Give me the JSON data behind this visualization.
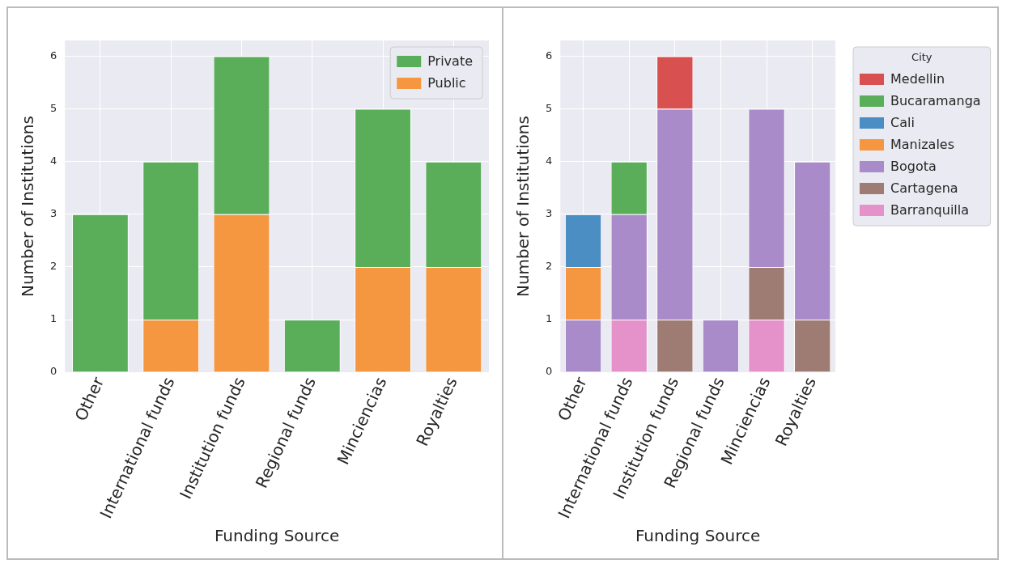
{
  "chart_data": [
    {
      "type": "bar",
      "xlabel": "Funding Source",
      "ylabel": "Number of Institutions",
      "categories": [
        "Other",
        "International funds",
        "Institution funds",
        "Regional funds",
        "Minciencias",
        "Royalties"
      ],
      "stacked": true,
      "ylim": [
        0,
        6.3
      ],
      "yticks": [
        0,
        1,
        2,
        3,
        4,
        5,
        6
      ],
      "grid": true,
      "legend": "top right",
      "series": [
        {
          "name": "Public",
          "color": "#f59640",
          "values": [
            0,
            1,
            3,
            0,
            2,
            2
          ]
        },
        {
          "name": "Private",
          "color": "#5aae5a",
          "values": [
            3,
            3,
            3,
            1,
            3,
            2
          ]
        }
      ]
    },
    {
      "type": "bar",
      "xlabel": "Funding Source",
      "ylabel": "Number of Institutions",
      "legend_title": "City",
      "categories": [
        "Other",
        "International funds",
        "Institution funds",
        "Regional funds",
        "Minciencias",
        "Royalties"
      ],
      "stacked": true,
      "ylim": [
        0,
        6.3
      ],
      "yticks": [
        0,
        1,
        2,
        3,
        4,
        5,
        6
      ],
      "grid": true,
      "legend": "right",
      "series": [
        {
          "name": "Barranquilla",
          "color": "#e592cb",
          "values": [
            0,
            1,
            0,
            0,
            1,
            0
          ]
        },
        {
          "name": "Cartagena",
          "color": "#9e7b73",
          "values": [
            0,
            0,
            1,
            0,
            1,
            1
          ]
        },
        {
          "name": "Bogota",
          "color": "#a98bc9",
          "values": [
            1,
            2,
            4,
            1,
            3,
            3
          ]
        },
        {
          "name": "Manizales",
          "color": "#f59640",
          "values": [
            1,
            0,
            0,
            0,
            0,
            0
          ]
        },
        {
          "name": "Cali",
          "color": "#4a8ec4",
          "values": [
            1,
            0,
            0,
            0,
            0,
            0
          ]
        },
        {
          "name": "Bucaramanga",
          "color": "#5aae5a",
          "values": [
            0,
            1,
            0,
            0,
            0,
            0
          ]
        },
        {
          "name": "Medellin",
          "color": "#d95050",
          "values": [
            0,
            0,
            1,
            0,
            0,
            0
          ]
        }
      ]
    }
  ]
}
